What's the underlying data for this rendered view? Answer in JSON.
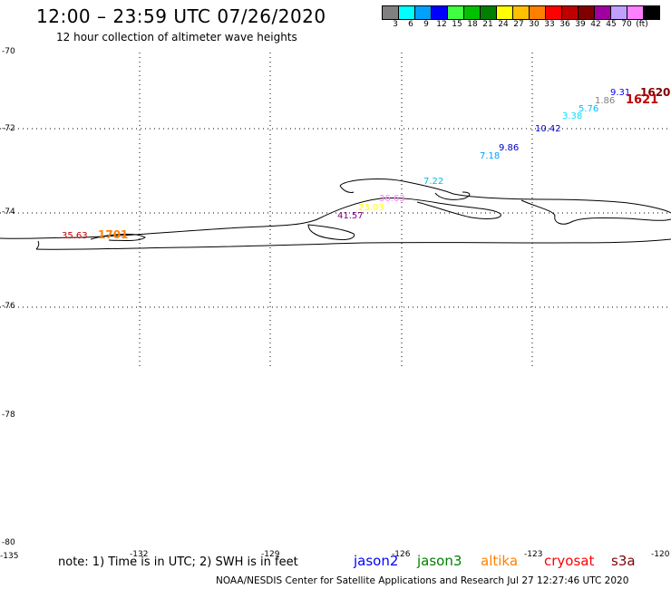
{
  "header": {
    "title": "12:00 – 23:59 UTC 07/26/2020",
    "subtitle": "12 hour collection of altimeter wave heights"
  },
  "legend": {
    "swatches": [
      {
        "label": "3",
        "color": "#808080"
      },
      {
        "label": "6",
        "color": "#00ffff"
      },
      {
        "label": "9",
        "color": "#00a0ff"
      },
      {
        "label": "12",
        "color": "#0000ff"
      },
      {
        "label": "15",
        "color": "#40ff40"
      },
      {
        "label": "18",
        "color": "#00c000"
      },
      {
        "label": "21",
        "color": "#008000"
      },
      {
        "label": "24",
        "color": "#ffff00"
      },
      {
        "label": "27",
        "color": "#ffc000"
      },
      {
        "label": "30",
        "color": "#ff8000"
      },
      {
        "label": "33",
        "color": "#ff0000"
      },
      {
        "label": "36",
        "color": "#c00000"
      },
      {
        "label": "39",
        "color": "#800000"
      },
      {
        "label": "42",
        "color": "#a000a0"
      },
      {
        "label": "45",
        "color": "#c0a0ff"
      },
      {
        "label": "70",
        "color": "#ff80ff"
      },
      {
        "label": "(ft)",
        "color": "#000000"
      }
    ]
  },
  "axes": {
    "lat_labels": [
      "-70",
      "-72",
      "-74",
      "-76",
      "-78",
      "-80"
    ],
    "lon_labels": [
      "-135",
      "-132",
      "-129",
      "-126",
      "-123",
      "-120"
    ]
  },
  "observations": [
    {
      "text": "35.63",
      "color": "#c00000"
    },
    {
      "text": "1701",
      "color": "#ff8000"
    },
    {
      "text": "41.57",
      "color": "#800080"
    },
    {
      "text": "23.03",
      "color": "#ffff00"
    },
    {
      "text": "36.63",
      "color": "#ff80ff"
    },
    {
      "text": "7.22",
      "color": "#00c0e0"
    },
    {
      "text": "7.18",
      "color": "#00a0ff"
    },
    {
      "text": "9.86",
      "color": "#0000c0"
    },
    {
      "text": "10.42",
      "color": "#0000c0"
    },
    {
      "text": "3.38",
      "color": "#00e0ff"
    },
    {
      "text": "5.76",
      "color": "#00c0ff"
    },
    {
      "text": "1.86",
      "color": "#808080"
    },
    {
      "text": "9.31",
      "color": "#0000ff"
    },
    {
      "text": "1620",
      "color": "#800000"
    },
    {
      "text": "1621",
      "color": "#c00000"
    }
  ],
  "footer": {
    "note": "note: 1) Time is in UTC; 2) SWH is in feet",
    "satellites": [
      {
        "name": "jason2",
        "color": "#0000ff"
      },
      {
        "name": "jason3",
        "color": "#008000"
      },
      {
        "name": "altika",
        "color": "#ff8000"
      },
      {
        "name": "cryosat",
        "color": "#ff0000"
      },
      {
        "name": "s3a",
        "color": "#800000"
      }
    ],
    "credit": "NOAA/NESDIS Center for Satellite Applications and Research    Jul 27 12:27:46 UTC 2020"
  }
}
